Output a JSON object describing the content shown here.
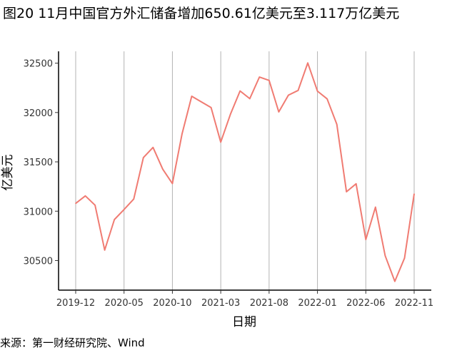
{
  "title": "图20 11月中国官方外汇储备增加650.61亿美元至3.117万亿美元",
  "source": "来源：第一财经研究院、Wind",
  "chart_data": {
    "type": "line",
    "title": "图20 11月中国官方外汇储备增加650.61亿美元至3.117万亿美元",
    "xlabel": "日期",
    "ylabel": "亿美元",
    "x_tick_labels": [
      "2019-12",
      "2020-05",
      "2020-10",
      "2021-03",
      "2021-08",
      "2022-01",
      "2022-06",
      "2022-11"
    ],
    "y_tick_labels": [
      "30500",
      "31000",
      "31500",
      "32000",
      "32500"
    ],
    "ylim": [
      30200,
      32620
    ],
    "grid": "vertical",
    "line_color": "#F07B72",
    "x": [
      "2019-12",
      "2020-01",
      "2020-02",
      "2020-03",
      "2020-04",
      "2020-05",
      "2020-06",
      "2020-07",
      "2020-08",
      "2020-09",
      "2020-10",
      "2020-11",
      "2020-12",
      "2021-01",
      "2021-02",
      "2021-03",
      "2021-04",
      "2021-05",
      "2021-06",
      "2021-07",
      "2021-08",
      "2021-09",
      "2021-10",
      "2021-11",
      "2021-12",
      "2022-01",
      "2022-02",
      "2022-03",
      "2022-04",
      "2022-05",
      "2022-06",
      "2022-07",
      "2022-08",
      "2022-09",
      "2022-10",
      "2022-11"
    ],
    "values": [
      31079,
      31155,
      31061,
      30606,
      30915,
      31017,
      31123,
      31543,
      31646,
      31426,
      31280,
      31785,
      32165,
      32107,
      32050,
      31700,
      31982,
      32218,
      32140,
      32359,
      32325,
      32006,
      32176,
      32224,
      32502,
      32216,
      32138,
      31880,
      31197,
      31278,
      30713,
      31041,
      30549,
      30289,
      30524,
      31175
    ]
  }
}
